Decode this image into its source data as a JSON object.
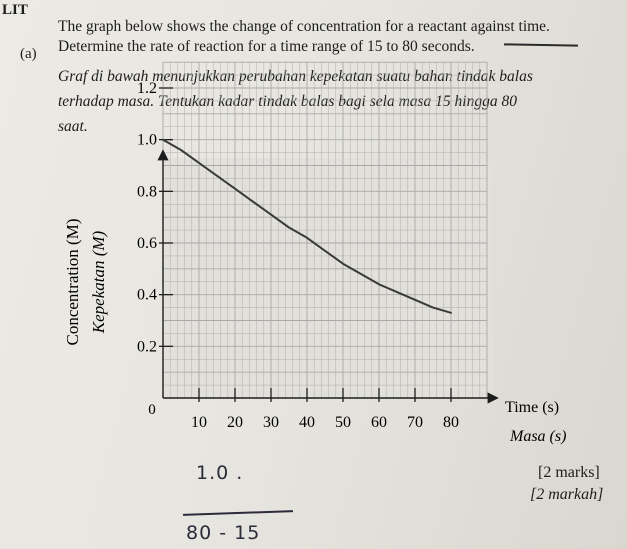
{
  "header_fragment": "LIT",
  "question": {
    "label": "(a)",
    "english_line1": "The graph below shows the change of concentration for a reactant against time.",
    "english_line2": "Determine the rate of reaction for a time range of 15 to 80 seconds.",
    "malay_line1": "Graf di bawah menunjukkan perubahan kepekatan suatu bahan tindak balas",
    "malay_line2": "terhadap masa. Tentukan kadar tindak balas bagi sela masa 15 hingga 80",
    "malay_line3": "saat."
  },
  "marks": {
    "english": "[2 marks]",
    "malay": "[2 markah]"
  },
  "handwriting": {
    "numerator": "1.0 .",
    "denominator": "80 - 15"
  },
  "chart_data": {
    "type": "line",
    "title": "",
    "xlabel": "Time (s)",
    "xlabel_malay": "Masa (s)",
    "ylabel": "Concentration (M)",
    "ylabel_malay": "Kepekatan (M)",
    "xlim": [
      0,
      90
    ],
    "ylim": [
      0,
      1.3
    ],
    "x_ticks": [
      10,
      20,
      30,
      40,
      50,
      60,
      70,
      80
    ],
    "x_tick_labels": [
      "10",
      "20",
      "30",
      "40",
      "50",
      "60",
      "70",
      "80"
    ],
    "y_ticks": [
      0.2,
      0.4,
      0.6,
      0.8,
      1.0,
      1.2
    ],
    "y_tick_labels": [
      "0.2",
      "0.4",
      "0.6",
      "0.8",
      "1.0",
      "1.2"
    ],
    "origin_label": "0",
    "grid": true,
    "series": [
      {
        "x": [
          0,
          5,
          10,
          15,
          20,
          25,
          30,
          35,
          40,
          45,
          50,
          55,
          60,
          65,
          70,
          75,
          80
        ],
        "y": [
          1.0,
          0.96,
          0.91,
          0.86,
          0.81,
          0.76,
          0.71,
          0.66,
          0.62,
          0.57,
          0.52,
          0.48,
          0.44,
          0.41,
          0.38,
          0.35,
          0.33
        ]
      }
    ],
    "colors": {
      "line": "#3a3a3a",
      "grid": "#a9a9a9",
      "axes": "#1d1d1d"
    }
  }
}
